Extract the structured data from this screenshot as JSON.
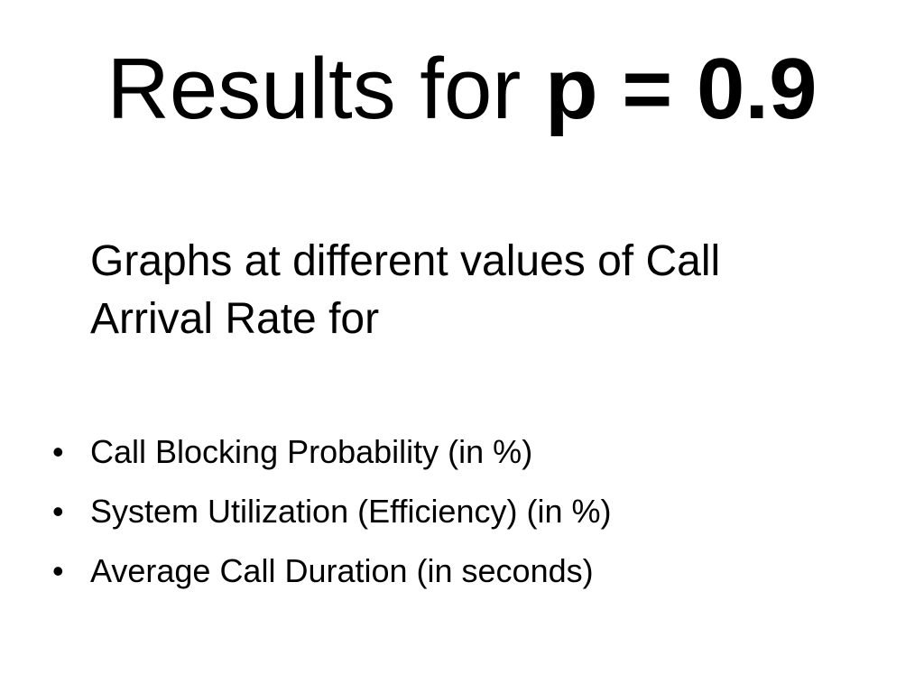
{
  "slide": {
    "title": {
      "prefix": "Results for ",
      "emphasis": "p = 0.9"
    },
    "subtitle_lines": [
      "Graphs at different values of Call",
      "Arrival Rate for"
    ],
    "bullet_marker": "•",
    "bullets": [
      "Call Blocking Probability (in %)",
      "System Utilization (Efficiency) (in %)",
      "Average Call Duration (in seconds)"
    ]
  }
}
